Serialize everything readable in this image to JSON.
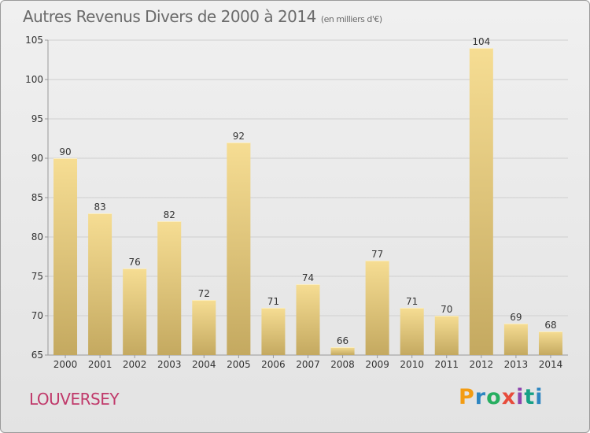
{
  "header": {
    "title": "Autres Revenus Divers de 2000 à 2014",
    "subtitle": "(en milliers d'€)"
  },
  "footer": {
    "commune": "LOUVERSEY",
    "brand": "Proxiti",
    "brand_colors": [
      "#f39c12",
      "#2e86c1",
      "#27ae60",
      "#e74c3c",
      "#8e44ad",
      "#16a085",
      "#2e86c1"
    ]
  },
  "colors": {
    "bar_top": "#f6dd93",
    "bar_bottom": "#c4a960",
    "grid": "#cfcfcf",
    "axis_text": "#333333",
    "commune": "#c0396a"
  },
  "chart_data": {
    "type": "bar",
    "categories": [
      "2000",
      "2001",
      "2002",
      "2003",
      "2004",
      "2005",
      "2006",
      "2007",
      "2008",
      "2009",
      "2010",
      "2011",
      "2012",
      "2013",
      "2014"
    ],
    "values": [
      90,
      83,
      76,
      82,
      72,
      92,
      71,
      74,
      66,
      77,
      71,
      70,
      104,
      69,
      68
    ],
    "title": "Autres Revenus Divers de 2000 à 2014",
    "subtitle": "(en milliers d'€)",
    "xlabel": "",
    "ylabel": "",
    "ylim": [
      65,
      105
    ],
    "yticks": [
      65,
      70,
      75,
      80,
      85,
      90,
      95,
      100,
      105
    ],
    "grid": true,
    "legend": "none"
  }
}
